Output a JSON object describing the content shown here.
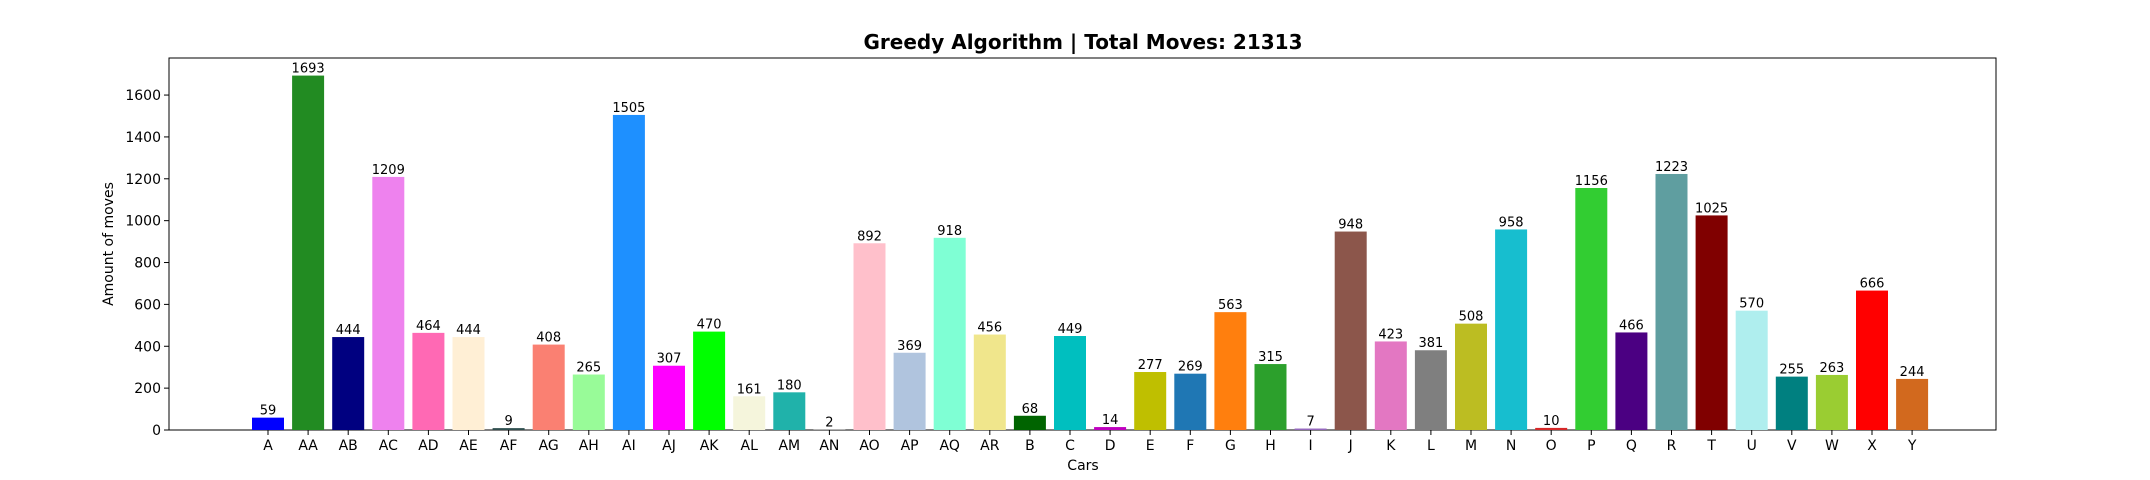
{
  "chart_data": {
    "type": "bar",
    "title": "Greedy Algorithm | Total Moves: 21313",
    "xlabel": "Cars",
    "ylabel": "Amount of moves",
    "ylim": [
      0,
      1777
    ],
    "yticks": [
      0,
      200,
      400,
      600,
      800,
      1000,
      1200,
      1400,
      1600
    ],
    "grid": false,
    "categories": [
      "A",
      "AA",
      "AB",
      "AC",
      "AD",
      "AE",
      "AF",
      "AG",
      "AH",
      "AI",
      "AJ",
      "AK",
      "AL",
      "AM",
      "AN",
      "AO",
      "AP",
      "AQ",
      "AR",
      "B",
      "C",
      "D",
      "E",
      "F",
      "G",
      "H",
      "I",
      "J",
      "K",
      "L",
      "M",
      "N",
      "O",
      "P",
      "Q",
      "R",
      "T",
      "U",
      "V",
      "W",
      "X",
      "Y"
    ],
    "values": [
      59,
      1693,
      444,
      1209,
      464,
      444,
      9,
      408,
      265,
      1505,
      307,
      470,
      161,
      180,
      2,
      892,
      369,
      918,
      456,
      68,
      449,
      14,
      277,
      269,
      563,
      315,
      7,
      948,
      423,
      381,
      508,
      958,
      10,
      1156,
      466,
      1223,
      1025,
      570,
      255,
      263,
      666,
      244
    ],
    "colors": [
      "#0000ff",
      "#228b22",
      "#000080",
      "#ee82ee",
      "#ff69b4",
      "#ffefd5",
      "#2f4f4f",
      "#fa8072",
      "#98fb98",
      "#1e90ff",
      "#ff00ff",
      "#00ff00",
      "#f5f5dc",
      "#20b2aa",
      "#808080",
      "#ffc0cb",
      "#b0c4de",
      "#7fffd4",
      "#f0e68c",
      "#006400",
      "#00bfbf",
      "#bf00bf",
      "#bfbf00",
      "#1f77b4",
      "#ff7f0e",
      "#2ca02c",
      "#9467bd",
      "#8c564b",
      "#e377c2",
      "#7f7f7f",
      "#bcbd22",
      "#17becf",
      "#d62728",
      "#32cd32",
      "#4b0082",
      "#5f9ea0",
      "#800000",
      "#afeeee",
      "#008080",
      "#9acd32",
      "#ff0000",
      "#d2691e"
    ]
  }
}
